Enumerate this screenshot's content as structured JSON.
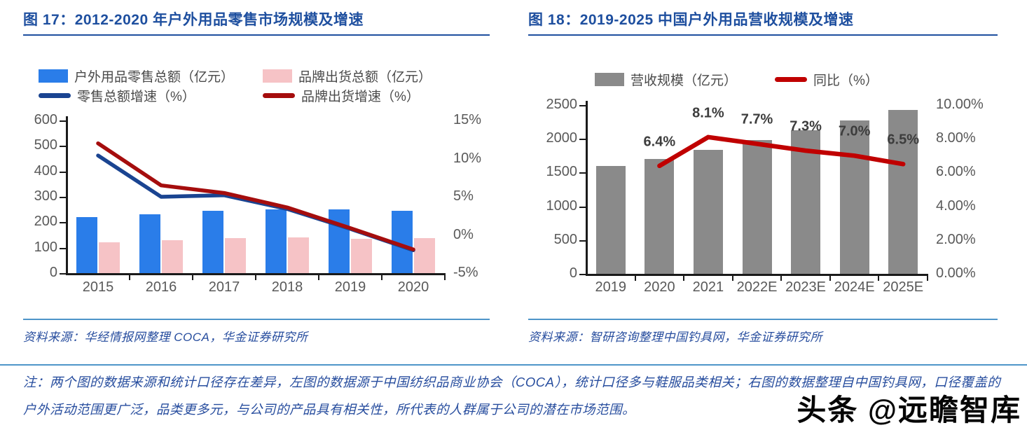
{
  "figures": [
    {
      "title": "图 17：2012-2020 年户外用品零售市场规模及增速",
      "source": "资料来源：华经情报网整理 COCA，华金证券研究所"
    },
    {
      "title": "图 18：2019-2025 中国户外用品营收规模及增速",
      "source": "资料来源：智研咨询整理中国钓具网，华金证券研究所"
    }
  ],
  "chart_data": [
    {
      "type": "bar+line",
      "title": "2012-2020 年户外用品零售市场规模及增速",
      "categories": [
        "2015",
        "2016",
        "2017",
        "2018",
        "2019",
        "2020"
      ],
      "left_axis": {
        "min": 0,
        "max": 600,
        "ticks": [
          "600",
          "500",
          "400",
          "300",
          "200",
          "100",
          "0"
        ]
      },
      "right_axis": {
        "min": -5,
        "max": 15,
        "ticks": [
          "15%",
          "10%",
          "5%",
          "0%",
          "-5%"
        ]
      },
      "bar_series": [
        {
          "name": "户外用品零售总额（亿元）",
          "color": "#2a7de9",
          "values": [
            221,
            232,
            244,
            250,
            250,
            245
          ]
        },
        {
          "name": "品牌出货总额（亿元）",
          "color": "#f6c3c6",
          "values": [
            121,
            130,
            137,
            141,
            134,
            137
          ]
        }
      ],
      "line_series": [
        {
          "name": "零售总额增速（%）",
          "color": "#1a4491",
          "values": [
            10.4,
            5.0,
            5.2,
            3.4,
            0.8,
            -2.0
          ]
        },
        {
          "name": "品牌出货增速（%）",
          "color": "#a50d0d",
          "values": [
            12.0,
            6.5,
            5.5,
            3.6,
            0.9,
            -1.9
          ]
        }
      ],
      "grid": false,
      "legend_position": "top"
    },
    {
      "type": "bar+line",
      "title": "2019-2025 中国户外用品营收规模及增速",
      "categories": [
        "2019",
        "2020",
        "2021",
        "2022E",
        "2023E",
        "2024E",
        "2025E"
      ],
      "left_axis": {
        "min": 0,
        "max": 2500,
        "ticks": [
          "2500",
          "2000",
          "1500",
          "1000",
          "500",
          "0"
        ]
      },
      "right_axis": {
        "min": 0,
        "max": 10,
        "ticks": [
          "10.00%",
          "8.00%",
          "6.00%",
          "4.00%",
          "2.00%",
          "0.00%"
        ]
      },
      "bar_series": [
        {
          "name": "营收规模（亿元）",
          "color": "#8a8a8a",
          "values": [
            1600,
            1702,
            1840,
            1982,
            2127,
            2276,
            2424
          ]
        }
      ],
      "line_series": [
        {
          "name": "同比（%）",
          "color": "#c00000",
          "values": [
            null,
            6.4,
            8.1,
            7.7,
            7.3,
            7.0,
            6.5
          ],
          "labels": [
            "",
            "6.4%",
            "8.1%",
            "7.7%",
            "7.3%",
            "7.0%",
            "6.5%"
          ]
        }
      ],
      "grid": false,
      "legend_position": "top"
    }
  ],
  "note": {
    "text": "注：两个图的数据来源和统计口径存在差异，左图的数据源于中国纺织品商业协会（COCA），统计口径多与鞋服品类相关；右图的数据整理自中国钓具网，口径覆盖的户外活动范围更广泛，品类更多元，与公司的产品具有相关性，所代表的人群属于公司的潜在市场范围。"
  },
  "watermark": "头条 @远瞻智库",
  "colors": {
    "title_blue": "#1e4f9f",
    "divider_blue": "#4e95c9",
    "source_text_blue": "#274d9e",
    "axis_text_gray": "#595959",
    "legend_text_gray": "#4a4a4a",
    "bar_blue": "#2a7de9",
    "bar_pink": "#f6c3c6",
    "bar_gray": "#8a8a8a",
    "line_navy": "#1a4491",
    "line_dark_red": "#a50d0d",
    "line_red": "#c00000",
    "watermark_black": "#050505"
  }
}
